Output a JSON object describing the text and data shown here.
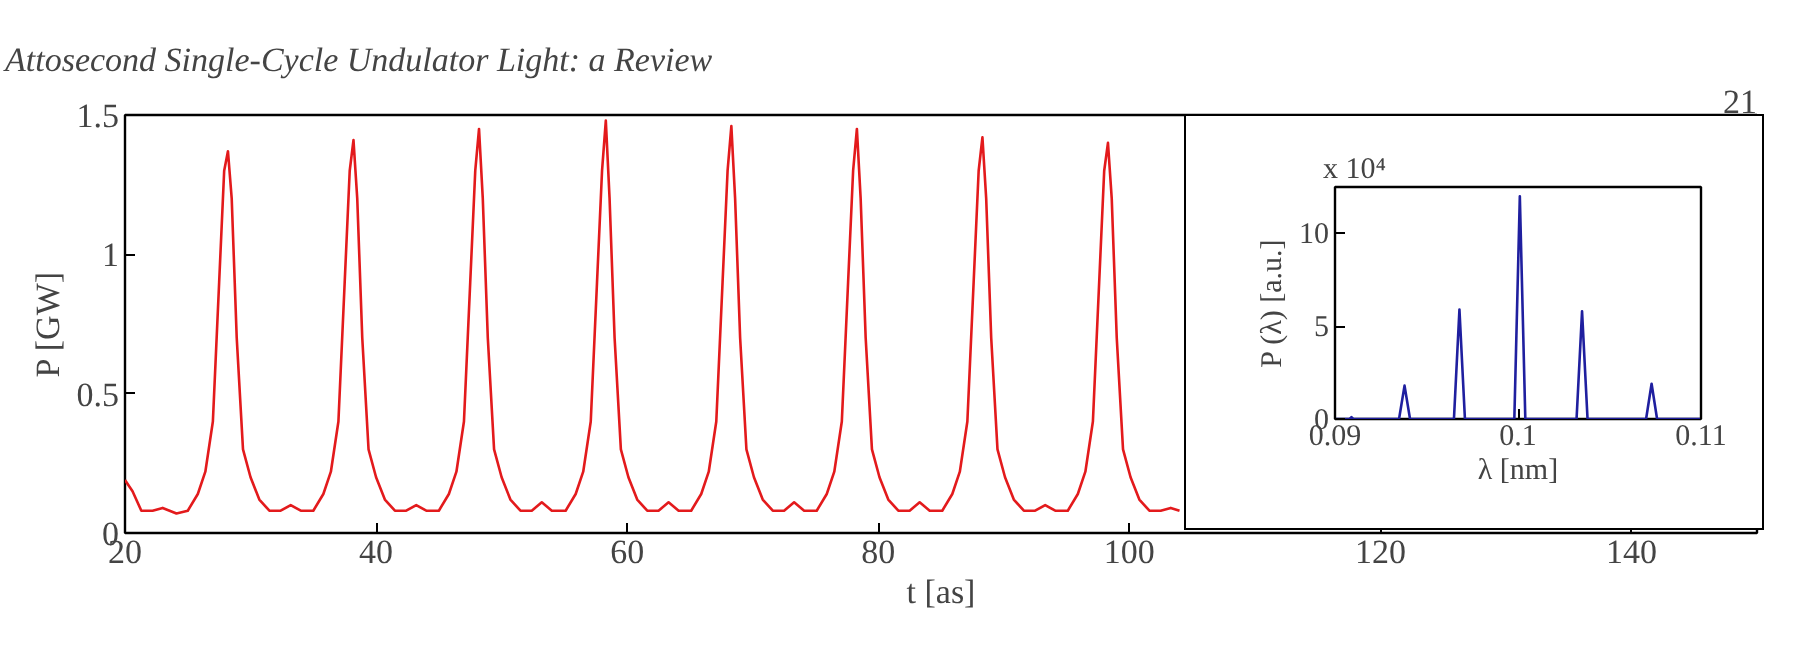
{
  "chart_data": [
    {
      "type": "line",
      "xlabel": "t [as]",
      "ylabel": "P [GW]",
      "annotations": [
        "Attosecond Single-Cycle Undulator Light: a Review",
        "21"
      ],
      "xlim": [
        20,
        150
      ],
      "ylim": [
        0,
        1.5
      ],
      "xticks": [
        20,
        40,
        60,
        80,
        100,
        120,
        140
      ],
      "yticks": [
        0,
        0.5,
        1,
        1.5
      ],
      "grid": false,
      "line_style": "solid",
      "series": [
        {
          "color": "#e31a1c",
          "x": [
            20,
            20.6,
            21.3,
            22.2,
            23,
            24.1,
            25.0,
            25.8,
            26.4,
            27.0,
            27.5,
            27.9,
            28.2,
            28.5,
            28.9,
            29.4,
            30.0,
            30.7,
            31.5,
            32.4,
            33.2,
            34.0,
            35.0,
            35.8,
            36.4,
            37.0,
            37.5,
            37.9,
            38.2,
            38.5,
            38.9,
            39.4,
            40.0,
            40.7,
            41.5,
            42.4,
            43.2,
            44.0,
            45.0,
            45.8,
            46.4,
            47.0,
            47.5,
            47.9,
            48.2,
            48.5,
            48.9,
            49.4,
            50.0,
            50.7,
            51.5,
            52.4,
            53.2,
            54.0,
            55.1,
            55.9,
            56.5,
            57.1,
            57.6,
            58.0,
            58.3,
            58.6,
            59.0,
            59.5,
            60.1,
            60.8,
            61.6,
            62.5,
            63.3,
            64.1,
            65.1,
            65.9,
            66.5,
            67.1,
            67.6,
            68.0,
            68.3,
            68.6,
            69.0,
            69.5,
            70.1,
            70.8,
            71.6,
            72.5,
            73.3,
            74.1,
            75.1,
            75.9,
            76.5,
            77.1,
            77.6,
            78.0,
            78.3,
            78.6,
            79.0,
            79.5,
            80.1,
            80.8,
            81.6,
            82.5,
            83.3,
            84.1,
            85.1,
            85.9,
            86.5,
            87.1,
            87.6,
            88.0,
            88.3,
            88.6,
            89.0,
            89.5,
            90.1,
            90.8,
            91.6,
            92.5,
            93.3,
            94.1,
            95.1,
            95.9,
            96.5,
            97.1,
            97.6,
            98.0,
            98.3,
            98.6,
            99.0,
            99.5,
            100.1,
            100.8,
            101.6,
            102.5,
            103.3,
            104.0
          ],
          "values": [
            0.19,
            0.15,
            0.08,
            0.08,
            0.09,
            0.07,
            0.08,
            0.14,
            0.22,
            0.4,
            0.9,
            1.3,
            1.37,
            1.2,
            0.7,
            0.3,
            0.2,
            0.12,
            0.08,
            0.08,
            0.1,
            0.08,
            0.08,
            0.14,
            0.22,
            0.4,
            0.9,
            1.3,
            1.41,
            1.2,
            0.7,
            0.3,
            0.2,
            0.12,
            0.08,
            0.08,
            0.1,
            0.08,
            0.08,
            0.14,
            0.22,
            0.4,
            0.9,
            1.3,
            1.45,
            1.2,
            0.7,
            0.3,
            0.2,
            0.12,
            0.08,
            0.08,
            0.11,
            0.08,
            0.08,
            0.14,
            0.22,
            0.4,
            0.9,
            1.3,
            1.48,
            1.2,
            0.7,
            0.3,
            0.2,
            0.12,
            0.08,
            0.08,
            0.11,
            0.08,
            0.08,
            0.14,
            0.22,
            0.4,
            0.9,
            1.3,
            1.46,
            1.2,
            0.7,
            0.3,
            0.2,
            0.12,
            0.08,
            0.08,
            0.11,
            0.08,
            0.08,
            0.14,
            0.22,
            0.4,
            0.9,
            1.3,
            1.45,
            1.2,
            0.7,
            0.3,
            0.2,
            0.12,
            0.08,
            0.08,
            0.11,
            0.08,
            0.08,
            0.14,
            0.22,
            0.4,
            0.9,
            1.3,
            1.42,
            1.2,
            0.7,
            0.3,
            0.2,
            0.12,
            0.08,
            0.08,
            0.1,
            0.08,
            0.08,
            0.14,
            0.22,
            0.4,
            0.9,
            1.3,
            1.4,
            1.2,
            0.7,
            0.3,
            0.2,
            0.12,
            0.08,
            0.08,
            0.09,
            0.08
          ]
        }
      ]
    },
    {
      "type": "line",
      "xlabel": "λ [nm]",
      "ylabel": "P (λ) [a.u.]",
      "annotations": [
        "x 10⁴"
      ],
      "xlim": [
        0.09,
        0.11
      ],
      "ylim": [
        0,
        12.5
      ],
      "xticks": [
        0.09,
        0.1,
        0.11
      ],
      "yticks": [
        0,
        5,
        10
      ],
      "grid": false,
      "line_style": "solid",
      "series": [
        {
          "color": "#1f1f9f",
          "x": [
            0.09,
            0.0908,
            0.0909,
            0.091,
            0.0935,
            0.0938,
            0.0941,
            0.0965,
            0.0968,
            0.0971,
            0.0998,
            0.1001,
            0.1004,
            0.1032,
            0.1035,
            0.1038,
            0.107,
            0.1073,
            0.1076,
            0.11
          ],
          "values": [
            0,
            0,
            0.1,
            0,
            0,
            1.8,
            0,
            0,
            5.9,
            0,
            0,
            12,
            0,
            0,
            5.8,
            0,
            0,
            1.9,
            0,
            0
          ]
        }
      ]
    }
  ]
}
